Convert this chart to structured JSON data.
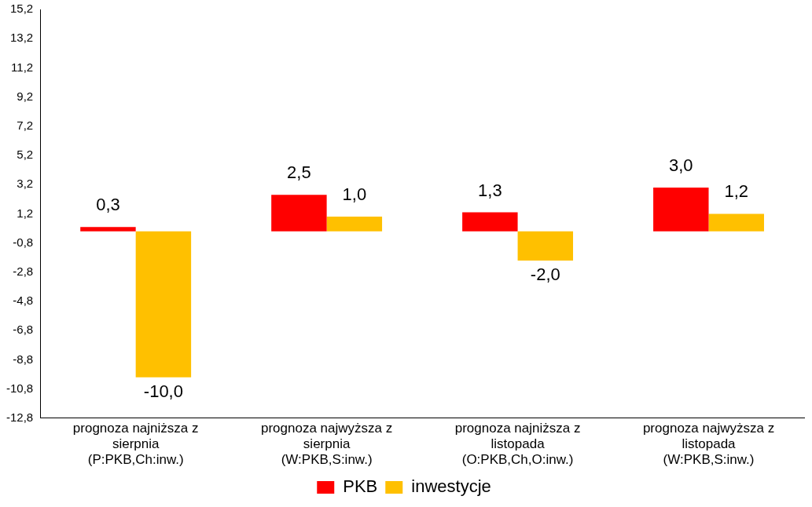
{
  "chart_data": {
    "type": "bar",
    "categories": [
      "prognoza najniższa z sierpnia (P:PKB,Ch:inw.)",
      "prognoza najwyższa z sierpnia (W:PKB,S:inw.)",
      "prognoza najniższa z listopada (O:PKB,Ch,O:inw.)",
      "prognoza najwyższa z listopada (W:PKB,S:inw.)"
    ],
    "series": [
      {
        "name": "PKB",
        "color": "#ff0000",
        "values": [
          0.3,
          2.5,
          1.3,
          3.0
        ],
        "value_labels": [
          "0,3",
          "2,5",
          "1,3",
          "3,0"
        ]
      },
      {
        "name": "inwestycje",
        "color": "#ffc000",
        "values": [
          -10.0,
          1.0,
          -2.0,
          1.2
        ],
        "value_labels": [
          "-10,0",
          "1,0",
          "-2,0",
          "1,2"
        ]
      }
    ],
    "ylim": [
      -12.8,
      15.2
    ],
    "yticks": [
      {
        "value": -12.8,
        "label": "-12,8"
      },
      {
        "value": -10.8,
        "label": "-10,8"
      },
      {
        "value": -8.8,
        "label": "-8,8"
      },
      {
        "value": -6.8,
        "label": "-6,8"
      },
      {
        "value": -4.8,
        "label": "-4,8"
      },
      {
        "value": -2.8,
        "label": "-2,8"
      },
      {
        "value": -0.8,
        "label": "-0,8"
      },
      {
        "value": 1.2,
        "label": "1,2"
      },
      {
        "value": 3.2,
        "label": "3,2"
      },
      {
        "value": 5.2,
        "label": "5,2"
      },
      {
        "value": 7.2,
        "label": "7,2"
      },
      {
        "value": 9.2,
        "label": "9,2"
      },
      {
        "value": 11.2,
        "label": "11,2"
      },
      {
        "value": 13.2,
        "label": "13,2"
      },
      {
        "value": 15.2,
        "label": "15,2"
      }
    ],
    "grid": false,
    "legend": "bottom"
  }
}
